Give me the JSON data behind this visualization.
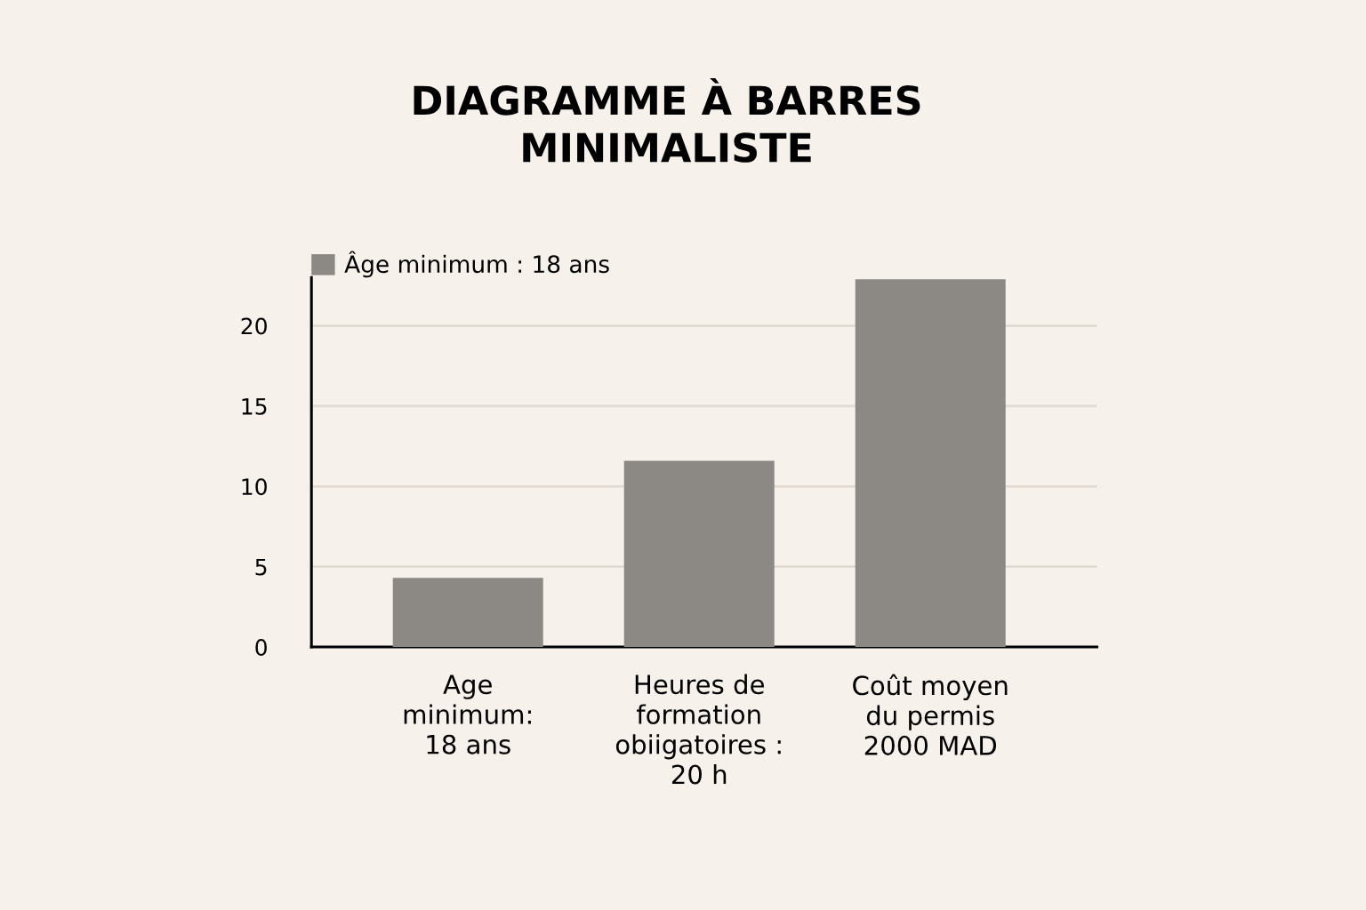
{
  "chart_data": {
    "type": "bar",
    "title": "DIAGRAMME À BARRES\nMINIMALISTE",
    "categories": [
      "Age\nminimum:\n18 ans",
      "Heures de\nformation\nobiigatoires :\n20 h",
      "Coût moyen\ndu permis\n2000 MAD"
    ],
    "series": [
      {
        "name": "Âge minimum : 18 ans",
        "color": "#8c8984",
        "values": [
          4.3,
          11.6,
          22.9
        ]
      }
    ],
    "ylim": [
      0,
      23
    ],
    "yticks": [
      0,
      5,
      10,
      15,
      20
    ],
    "grid": "y",
    "legend": "top left"
  }
}
